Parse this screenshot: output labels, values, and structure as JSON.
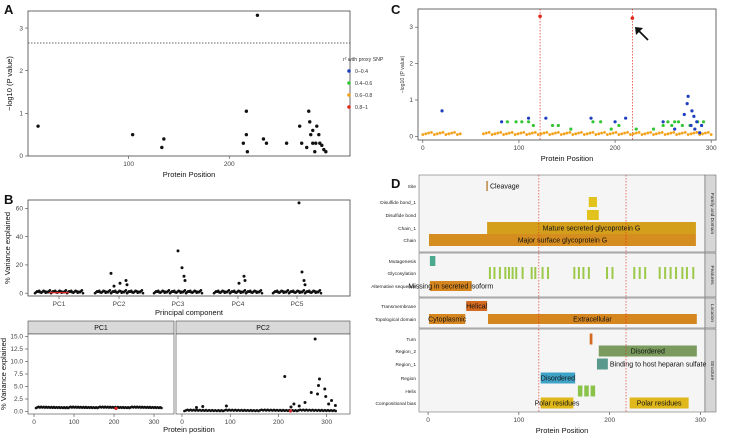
{
  "chart_data": [
    {
      "panel": "A",
      "type": "scatter",
      "xlabel": "Protein Position",
      "ylabel": "−log10 (P value)",
      "x_ticks": [
        "100",
        "200"
      ],
      "y_ticks": [
        "0",
        "1",
        "2",
        "3"
      ],
      "xlim": [
        0,
        320
      ],
      "ylim": [
        0,
        3.4
      ],
      "threshold": 2.65,
      "points": [
        {
          "x": 10,
          "y": 0.7
        },
        {
          "x": 104,
          "y": 0.5
        },
        {
          "x": 133,
          "y": 0.2
        },
        {
          "x": 135,
          "y": 0.4
        },
        {
          "x": 214,
          "y": 0.3
        },
        {
          "x": 217,
          "y": 1.05
        },
        {
          "x": 217,
          "y": 0.5
        },
        {
          "x": 218,
          "y": 0.1
        },
        {
          "x": 228,
          "y": 3.3
        },
        {
          "x": 234,
          "y": 0.4
        },
        {
          "x": 237,
          "y": 0.3
        },
        {
          "x": 257,
          "y": 0.3
        },
        {
          "x": 270,
          "y": 0.7
        },
        {
          "x": 272,
          "y": 0.3
        },
        {
          "x": 277,
          "y": 0.2
        },
        {
          "x": 279,
          "y": 1.05
        },
        {
          "x": 280,
          "y": 0.8
        },
        {
          "x": 281,
          "y": 0.5
        },
        {
          "x": 283,
          "y": 0.3
        },
        {
          "x": 285,
          "y": 0.1
        },
        {
          "x": 287,
          "y": 0.7
        },
        {
          "x": 289,
          "y": 0.5
        },
        {
          "x": 290,
          "y": 0.3
        },
        {
          "x": 292,
          "y": 0.25
        },
        {
          "x": 294,
          "y": 0.15
        },
        {
          "x": 296,
          "y": 0.1
        },
        {
          "x": 283,
          "y": 0.6
        },
        {
          "x": 286,
          "y": 0.3
        }
      ]
    },
    {
      "panel": "B",
      "type": "scatter",
      "xlabel": "Principal component",
      "ylabel": "% Variance explained",
      "categories": [
        "PC1",
        "PC2",
        "PC3",
        "PC4",
        "PC5"
      ],
      "y_ticks": [
        "0",
        "20",
        "40",
        "60"
      ],
      "ylim": [
        -2,
        66
      ],
      "outliers": [
        {
          "pc": 1,
          "y": 14
        },
        {
          "pc": 1,
          "y": 9
        },
        {
          "pc": 1,
          "y": 7
        },
        {
          "pc": 1,
          "y": 6
        },
        {
          "pc": 1,
          "y": 5
        },
        {
          "pc": 2,
          "y": 18
        },
        {
          "pc": 2,
          "y": 30
        },
        {
          "pc": 2,
          "y": 12
        },
        {
          "pc": 2,
          "y": 9
        },
        {
          "pc": 3,
          "y": 9
        },
        {
          "pc": 3,
          "y": 12
        },
        {
          "pc": 3,
          "y": 7
        },
        {
          "pc": 4,
          "y": 64
        },
        {
          "pc": 4,
          "y": 15
        },
        {
          "pc": 4,
          "y": 9
        },
        {
          "pc": 4,
          "y": 6
        }
      ]
    },
    {
      "panel": "B-lower",
      "type": "scatter",
      "xlabel": "Protein position",
      "ylabel": "% Variance explained",
      "facets": [
        "PC1",
        "PC2"
      ],
      "x_ticks": [
        "0",
        "100",
        "200",
        "300"
      ],
      "y_ticks": [
        "0.0",
        "2.5",
        "5.0",
        "7.5",
        "10.0",
        "12.5",
        "15.0"
      ],
      "ylim": [
        -0.5,
        15.5
      ],
      "pc2_peaks": [
        {
          "x": 213,
          "y": 7.0
        },
        {
          "x": 276,
          "y": 14.5
        },
        {
          "x": 285,
          "y": 6.5
        },
        {
          "x": 283,
          "y": 5.2
        },
        {
          "x": 296,
          "y": 4.5
        },
        {
          "x": 281,
          "y": 3.5
        },
        {
          "x": 268,
          "y": 3.8
        },
        {
          "x": 255,
          "y": 1.8
        },
        {
          "x": 298,
          "y": 3.0
        },
        {
          "x": 304,
          "y": 1.5
        },
        {
          "x": 310,
          "y": 2.2
        },
        {
          "x": 318,
          "y": 1.2
        },
        {
          "x": 232,
          "y": 1.5
        },
        {
          "x": 243,
          "y": 1.1
        },
        {
          "x": 226,
          "y": 0.9
        },
        {
          "x": 92,
          "y": 1.1
        },
        {
          "x": 43,
          "y": 1.0
        },
        {
          "x": 30,
          "y": 0.8
        }
      ]
    },
    {
      "panel": "C",
      "type": "scatter",
      "xlabel": "Protein Position",
      "ylabel": "−log10 (P value)",
      "x_ticks": [
        "0",
        "100",
        "200",
        "300"
      ],
      "y_ticks": [
        "0",
        "1",
        "2",
        "3"
      ],
      "xlim": [
        -5,
        305
      ],
      "ylim": [
        -0.1,
        3.5
      ],
      "vlines": [
        122,
        218
      ],
      "legend_title": "r² with proxy SNP",
      "legend": [
        {
          "label": "0–0.4",
          "color": "#1f3fbf"
        },
        {
          "label": "0.4–0.6",
          "color": "#35c535"
        },
        {
          "label": "0.6–0.8",
          "color": "#f2a11a"
        },
        {
          "label": "0.8–1",
          "color": "#e0281b"
        }
      ],
      "red_points": [
        {
          "x": 122,
          "y": 3.3
        },
        {
          "x": 218,
          "y": 3.25
        }
      ],
      "blue_points": [
        {
          "x": 20,
          "y": 0.7
        },
        {
          "x": 82,
          "y": 0.4
        },
        {
          "x": 110,
          "y": 0.5
        },
        {
          "x": 128,
          "y": 0.5
        },
        {
          "x": 175,
          "y": 0.5
        },
        {
          "x": 200,
          "y": 0.4
        },
        {
          "x": 211,
          "y": 0.5
        },
        {
          "x": 250,
          "y": 0.4
        },
        {
          "x": 272,
          "y": 0.6
        },
        {
          "x": 275,
          "y": 0.9
        },
        {
          "x": 276,
          "y": 1.1
        },
        {
          "x": 280,
          "y": 0.7
        },
        {
          "x": 285,
          "y": 0.4
        },
        {
          "x": 262,
          "y": 0.2
        },
        {
          "x": 290,
          "y": 0.3
        },
        {
          "x": 282,
          "y": 0.55
        },
        {
          "x": 279,
          "y": 0.3
        },
        {
          "x": 283,
          "y": 0.2
        },
        {
          "x": 288,
          "y": 0.1
        }
      ],
      "green_points": [
        {
          "x": 88,
          "y": 0.4
        },
        {
          "x": 97,
          "y": 0.4
        },
        {
          "x": 103,
          "y": 0.4
        },
        {
          "x": 110,
          "y": 0.4
        },
        {
          "x": 115,
          "y": 0.3
        },
        {
          "x": 135,
          "y": 0.3
        },
        {
          "x": 141,
          "y": 0.3
        },
        {
          "x": 154,
          "y": 0.2
        },
        {
          "x": 177,
          "y": 0.4
        },
        {
          "x": 185,
          "y": 0.4
        },
        {
          "x": 196,
          "y": 0.2
        },
        {
          "x": 204,
          "y": 0.3
        },
        {
          "x": 222,
          "y": 0.2
        },
        {
          "x": 240,
          "y": 0.2
        },
        {
          "x": 250,
          "y": 0.3
        },
        {
          "x": 255,
          "y": 0.4
        },
        {
          "x": 259,
          "y": 0.3
        },
        {
          "x": 266,
          "y": 0.4
        },
        {
          "x": 278,
          "y": 0.3
        },
        {
          "x": 286,
          "y": 0.4
        },
        {
          "x": 292,
          "y": 0.4
        },
        {
          "x": 270,
          "y": 0.3
        },
        {
          "x": 262,
          "y": 0.4
        }
      ]
    },
    {
      "panel": "D",
      "type": "gantt",
      "xlabel": "Protein Position",
      "x_ticks": [
        "0",
        "100",
        "200",
        "300"
      ],
      "xlim": [
        -10,
        305
      ],
      "vlines": [
        122,
        218
      ],
      "groups": [
        {
          "name": "Family and Domain",
          "rows": [
            "Site",
            "Disulfide bond_1",
            "Disulfide bond",
            "Chain_1",
            "Chain"
          ],
          "bars": [
            {
              "row": 0,
              "start": 64,
              "end": 66,
              "color": "#c79a62",
              "label": "Cleavage"
            },
            {
              "row": 1,
              "start": 177,
              "end": 186,
              "color": "#e2c21d",
              "label": ""
            },
            {
              "row": 2,
              "start": 175,
              "end": 188,
              "color": "#e2c21d",
              "label": ""
            },
            {
              "row": 3,
              "start": 65,
              "end": 295,
              "color": "#d4a01c",
              "label": "Mature secreted glycoprotein G"
            },
            {
              "row": 4,
              "start": 1,
              "end": 295,
              "color": "#d68d1f",
              "label": "Major surface glycoprotein G"
            }
          ]
        },
        {
          "name": "Features",
          "rows": [
            "Mutagenesis",
            "Glycosylation",
            "Alternative sequence"
          ],
          "bars": [
            {
              "row": 0,
              "start": 2,
              "end": 8,
              "color": "#4aa98f",
              "label": ""
            },
            {
              "row": 2,
              "start": 2,
              "end": 48,
              "color": "#d6861f",
              "label": "Missing in secreted isoform"
            }
          ]
        },
        {
          "name": "Location",
          "rows": [
            "Transmembrane",
            "Topological domain"
          ],
          "bars": [
            {
              "row": 0,
              "start": 42,
              "end": 65,
              "color": "#d46a1f",
              "label": "Helical"
            },
            {
              "row": 1,
              "start": 1,
              "end": 41,
              "color": "#d6861f",
              "label": "Cytoplasmic"
            },
            {
              "row": 1,
              "start": 66,
              "end": 296,
              "color": "#d6861f",
              "label": "Extracellular"
            }
          ]
        },
        {
          "name": "Structure",
          "rows": [
            "Turn",
            "Region_2",
            "Region_1",
            "Region",
            "Helix",
            "Compositional bias"
          ],
          "bars": [
            {
              "row": 0,
              "start": 178,
              "end": 181,
              "color": "#d46a1f",
              "label": ""
            },
            {
              "row": 1,
              "start": 188,
              "end": 296,
              "color": "#7a9a5e",
              "label": "Disordered"
            },
            {
              "row": 2,
              "start": 186,
              "end": 198,
              "color": "#5a9a8e",
              "label": "Binding to host heparan sulfate"
            },
            {
              "row": 3,
              "start": 124,
              "end": 162,
              "color": "#3fa2c7",
              "label": "Disordered"
            },
            {
              "row": 4,
              "start": 165,
              "end": 170,
              "color": "#8bc34a",
              "label": ""
            },
            {
              "row": 4,
              "start": 172,
              "end": 177,
              "color": "#8bc34a",
              "label": ""
            },
            {
              "row": 4,
              "start": 179,
              "end": 184,
              "color": "#8bc34a",
              "label": ""
            },
            {
              "row": 5,
              "start": 124,
              "end": 160,
              "color": "#e0b81b",
              "label": "Polar residues"
            },
            {
              "row": 5,
              "start": 222,
              "end": 287,
              "color": "#e0b81b",
              "label": "Polar residues"
            }
          ]
        }
      ],
      "glycosylation_marks": [
        67,
        72,
        78,
        84,
        88,
        92,
        96,
        103,
        113,
        117,
        125,
        131,
        160,
        165,
        170,
        176,
        196,
        202,
        226,
        232,
        238,
        254,
        260,
        266,
        272,
        279,
        284,
        291
      ]
    }
  ]
}
